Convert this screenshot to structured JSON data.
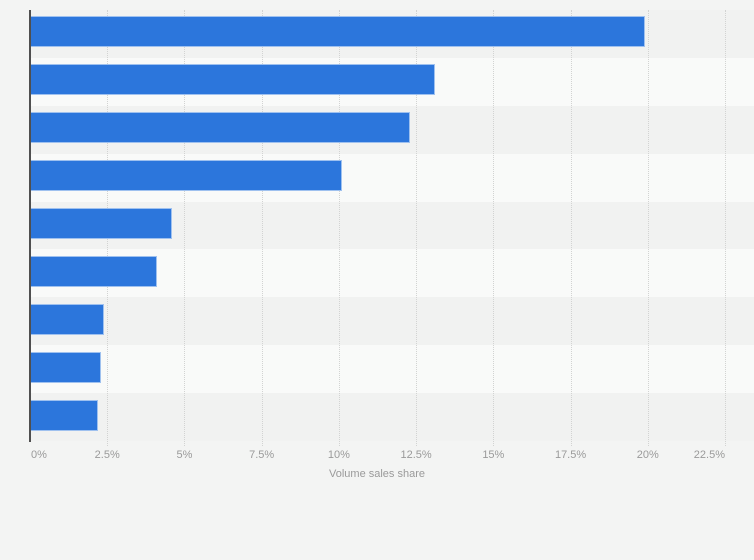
{
  "chart_data": {
    "type": "bar",
    "orientation": "horizontal",
    "title": "",
    "xlabel": "Volume sales share",
    "ylabel": "",
    "categories": [
      "",
      "",
      "",
      "",
      "",
      "",
      "",
      "",
      ""
    ],
    "series": [
      {
        "name": "Volume sales share",
        "values": [
          19.9,
          13.1,
          12.3,
          10.1,
          4.6,
          4.1,
          2.4,
          2.3,
          2.2
        ]
      }
    ],
    "value_unit": "%",
    "x_ticks": [
      "0%",
      "2.5%",
      "5%",
      "7.5%",
      "10%",
      "12.5%",
      "15%",
      "17.5%",
      "20%",
      "22.5%"
    ],
    "x_tick_values": [
      0,
      2.5,
      5,
      7.5,
      10,
      12.5,
      15,
      17.5,
      20,
      22.5
    ],
    "xlim": [
      0,
      23.4
    ],
    "grid": "vertical-dotted",
    "legend": "none",
    "colors": {
      "bar": "#2c76dc",
      "bar_border": "rgba(255,255,255,0.55)",
      "band_odd": "#f1f2f1",
      "band_even": "#f9faf9",
      "gridline": "#d2d3d2",
      "axis_line": "#4f4f4f",
      "tick_label": "#9a9a9a",
      "background": "#f3f4f3"
    }
  }
}
